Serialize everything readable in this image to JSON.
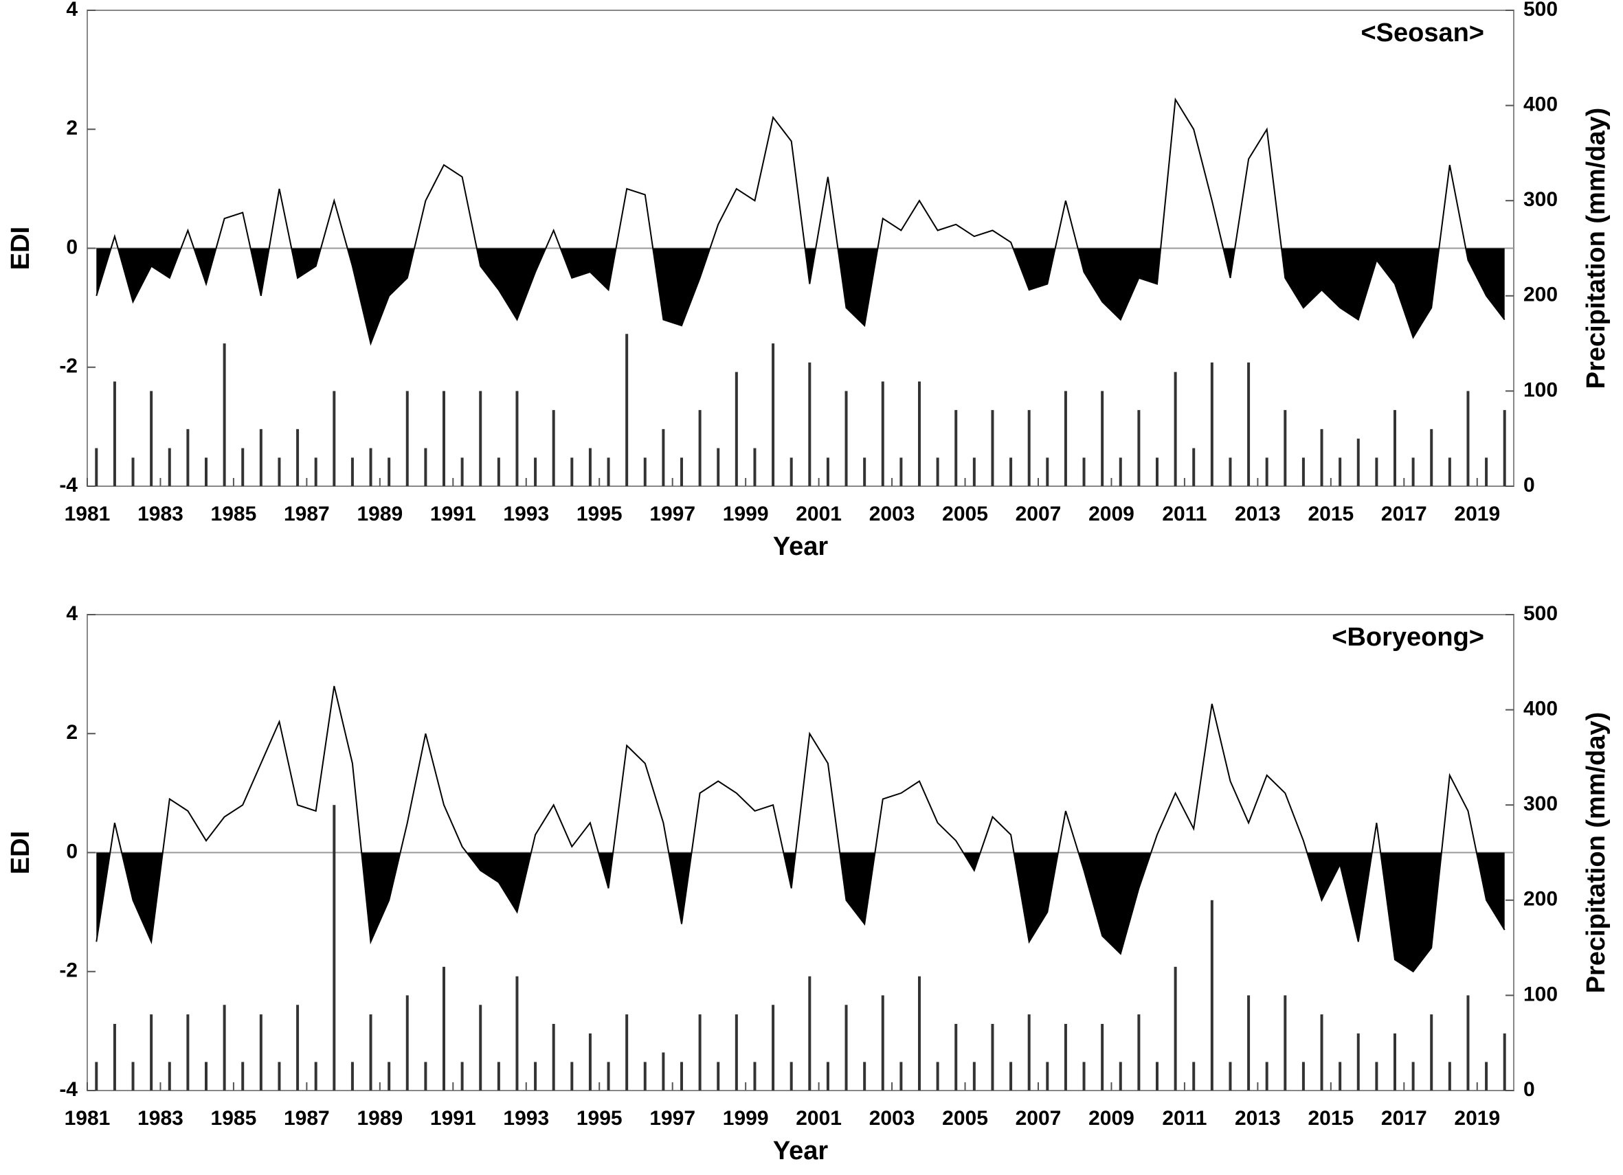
{
  "chart_data": [
    {
      "type": "line",
      "annotation": "<Seosan>",
      "x_label": "Year",
      "y_label": "EDI",
      "y2_label": "Precipitation (mm/day)",
      "xlim": [
        1981,
        2020
      ],
      "xticks": [
        1981,
        1983,
        1985,
        1987,
        1989,
        1991,
        1993,
        1995,
        1997,
        1999,
        2001,
        2003,
        2005,
        2007,
        2009,
        2011,
        2013,
        2015,
        2017,
        2019
      ],
      "ylim": [
        -4,
        4
      ],
      "yticks": [
        -4,
        -2,
        0,
        2,
        4
      ],
      "y2lim": [
        0,
        500
      ],
      "y2ticks": [
        0,
        100,
        200,
        300,
        400,
        500
      ],
      "x": [
        1981.25,
        1981.75,
        1982.25,
        1982.75,
        1983.25,
        1983.75,
        1984.25,
        1984.75,
        1985.25,
        1985.75,
        1986.25,
        1986.75,
        1987.25,
        1987.75,
        1988.25,
        1988.75,
        1989.25,
        1989.75,
        1990.25,
        1990.75,
        1991.25,
        1991.75,
        1992.25,
        1992.75,
        1993.25,
        1993.75,
        1994.25,
        1994.75,
        1995.25,
        1995.75,
        1996.25,
        1996.75,
        1997.25,
        1997.75,
        1998.25,
        1998.75,
        1999.25,
        1999.75,
        2000.25,
        2000.75,
        2001.25,
        2001.75,
        2002.25,
        2002.75,
        2003.25,
        2003.75,
        2004.25,
        2004.75,
        2005.25,
        2005.75,
        2006.25,
        2006.75,
        2007.25,
        2007.75,
        2008.25,
        2008.75,
        2009.25,
        2009.75,
        2010.25,
        2010.75,
        2011.25,
        2011.75,
        2012.25,
        2012.75,
        2013.25,
        2013.75,
        2014.25,
        2014.75,
        2015.25,
        2015.75,
        2016.25,
        2016.75,
        2017.25,
        2017.75,
        2018.25,
        2018.75,
        2019.25,
        2019.75
      ],
      "series": [
        {
          "type": "line",
          "color": "#000000",
          "values": [
            -0.8,
            0.2,
            -0.9,
            -0.3,
            -0.5,
            0.3,
            -0.6,
            0.5,
            0.6,
            -0.8,
            1.0,
            -0.5,
            -0.3,
            0.8,
            -0.3,
            -1.6,
            -0.8,
            -0.5,
            0.8,
            1.4,
            1.2,
            -0.3,
            -0.7,
            -1.2,
            -0.4,
            0.3,
            -0.5,
            -0.4,
            -0.7,
            1.0,
            0.9,
            -1.2,
            -1.3,
            -0.5,
            0.4,
            1.0,
            0.8,
            2.2,
            1.8,
            -0.6,
            1.2,
            -1.0,
            -1.3,
            0.5,
            0.3,
            0.8,
            0.3,
            0.4,
            0.2,
            0.3,
            0.1,
            -0.7,
            -0.6,
            0.8,
            -0.4,
            -0.9,
            -1.2,
            -0.5,
            -0.6,
            2.5,
            2.0,
            0.8,
            -0.5,
            1.5,
            2.0,
            -0.5,
            -1.0,
            -0.7,
            -1.0,
            -1.2,
            -0.2,
            -0.6,
            -1.5,
            -1.0,
            1.4,
            -0.2,
            -0.8,
            -1.2
          ]
        },
        {
          "type": "bar",
          "axis": "y2",
          "color": "#333333",
          "values": [
            40,
            110,
            30,
            100,
            40,
            60,
            30,
            150,
            40,
            60,
            30,
            60,
            30,
            100,
            30,
            40,
            30,
            100,
            40,
            100,
            30,
            100,
            30,
            100,
            30,
            80,
            30,
            40,
            30,
            160,
            30,
            60,
            30,
            80,
            40,
            120,
            40,
            150,
            30,
            130,
            30,
            100,
            30,
            110,
            30,
            110,
            30,
            80,
            30,
            80,
            30,
            80,
            30,
            100,
            30,
            100,
            30,
            80,
            30,
            120,
            40,
            130,
            30,
            130,
            30,
            80,
            30,
            60,
            30,
            50,
            30,
            80,
            30,
            60,
            30,
            100,
            30,
            80
          ]
        }
      ]
    },
    {
      "type": "line",
      "annotation": "<Boryeong>",
      "x_label": "Year",
      "y_label": "EDI",
      "y2_label": "Precipitation (mm/day)",
      "xlim": [
        1981,
        2020
      ],
      "xticks": [
        1981,
        1983,
        1985,
        1987,
        1989,
        1991,
        1993,
        1995,
        1997,
        1999,
        2001,
        2003,
        2005,
        2007,
        2009,
        2011,
        2013,
        2015,
        2017,
        2019
      ],
      "ylim": [
        -4,
        4
      ],
      "yticks": [
        -4,
        -2,
        0,
        2,
        4
      ],
      "y2lim": [
        0,
        500
      ],
      "y2ticks": [
        0,
        100,
        200,
        300,
        400,
        500
      ],
      "x": [
        1981.25,
        1981.75,
        1982.25,
        1982.75,
        1983.25,
        1983.75,
        1984.25,
        1984.75,
        1985.25,
        1985.75,
        1986.25,
        1986.75,
        1987.25,
        1987.75,
        1988.25,
        1988.75,
        1989.25,
        1989.75,
        1990.25,
        1990.75,
        1991.25,
        1991.75,
        1992.25,
        1992.75,
        1993.25,
        1993.75,
        1994.25,
        1994.75,
        1995.25,
        1995.75,
        1996.25,
        1996.75,
        1997.25,
        1997.75,
        1998.25,
        1998.75,
        1999.25,
        1999.75,
        2000.25,
        2000.75,
        2001.25,
        2001.75,
        2002.25,
        2002.75,
        2003.25,
        2003.75,
        2004.25,
        2004.75,
        2005.25,
        2005.75,
        2006.25,
        2006.75,
        2007.25,
        2007.75,
        2008.25,
        2008.75,
        2009.25,
        2009.75,
        2010.25,
        2010.75,
        2011.25,
        2011.75,
        2012.25,
        2012.75,
        2013.25,
        2013.75,
        2014.25,
        2014.75,
        2015.25,
        2015.75,
        2016.25,
        2016.75,
        2017.25,
        2017.75,
        2018.25,
        2018.75,
        2019.25,
        2019.75
      ],
      "series": [
        {
          "type": "line",
          "color": "#000000",
          "values": [
            -1.5,
            0.5,
            -0.8,
            -1.5,
            0.9,
            0.7,
            0.2,
            0.6,
            0.8,
            1.5,
            2.2,
            0.8,
            0.7,
            2.8,
            1.5,
            -1.5,
            -0.8,
            0.5,
            2.0,
            0.8,
            0.1,
            -0.3,
            -0.5,
            -1.0,
            0.3,
            0.8,
            0.1,
            0.5,
            -0.6,
            1.8,
            1.5,
            0.5,
            -1.2,
            1.0,
            1.2,
            1.0,
            0.7,
            0.8,
            -0.6,
            2.0,
            1.5,
            -0.8,
            -1.2,
            0.9,
            1.0,
            1.2,
            0.5,
            0.2,
            -0.3,
            0.6,
            0.3,
            -1.5,
            -1.0,
            0.7,
            -0.3,
            -1.4,
            -1.7,
            -0.6,
            0.3,
            1.0,
            0.4,
            2.5,
            1.2,
            0.5,
            1.3,
            1.0,
            0.2,
            -0.8,
            -0.2,
            -1.5,
            0.5,
            -1.8,
            -2.0,
            -1.6,
            1.3,
            0.7,
            -0.8,
            -1.3
          ]
        },
        {
          "type": "bar",
          "axis": "y2",
          "color": "#333333",
          "values": [
            30,
            70,
            30,
            80,
            30,
            80,
            30,
            90,
            30,
            80,
            30,
            90,
            30,
            300,
            30,
            80,
            30,
            100,
            30,
            130,
            30,
            90,
            30,
            120,
            30,
            70,
            30,
            60,
            30,
            80,
            30,
            40,
            30,
            80,
            30,
            80,
            30,
            90,
            30,
            120,
            30,
            90,
            30,
            100,
            30,
            120,
            30,
            70,
            30,
            70,
            30,
            80,
            30,
            70,
            30,
            70,
            30,
            80,
            30,
            130,
            30,
            200,
            30,
            100,
            30,
            100,
            30,
            80,
            30,
            60,
            30,
            60,
            30,
            80,
            30,
            100,
            30,
            60
          ]
        }
      ]
    }
  ]
}
